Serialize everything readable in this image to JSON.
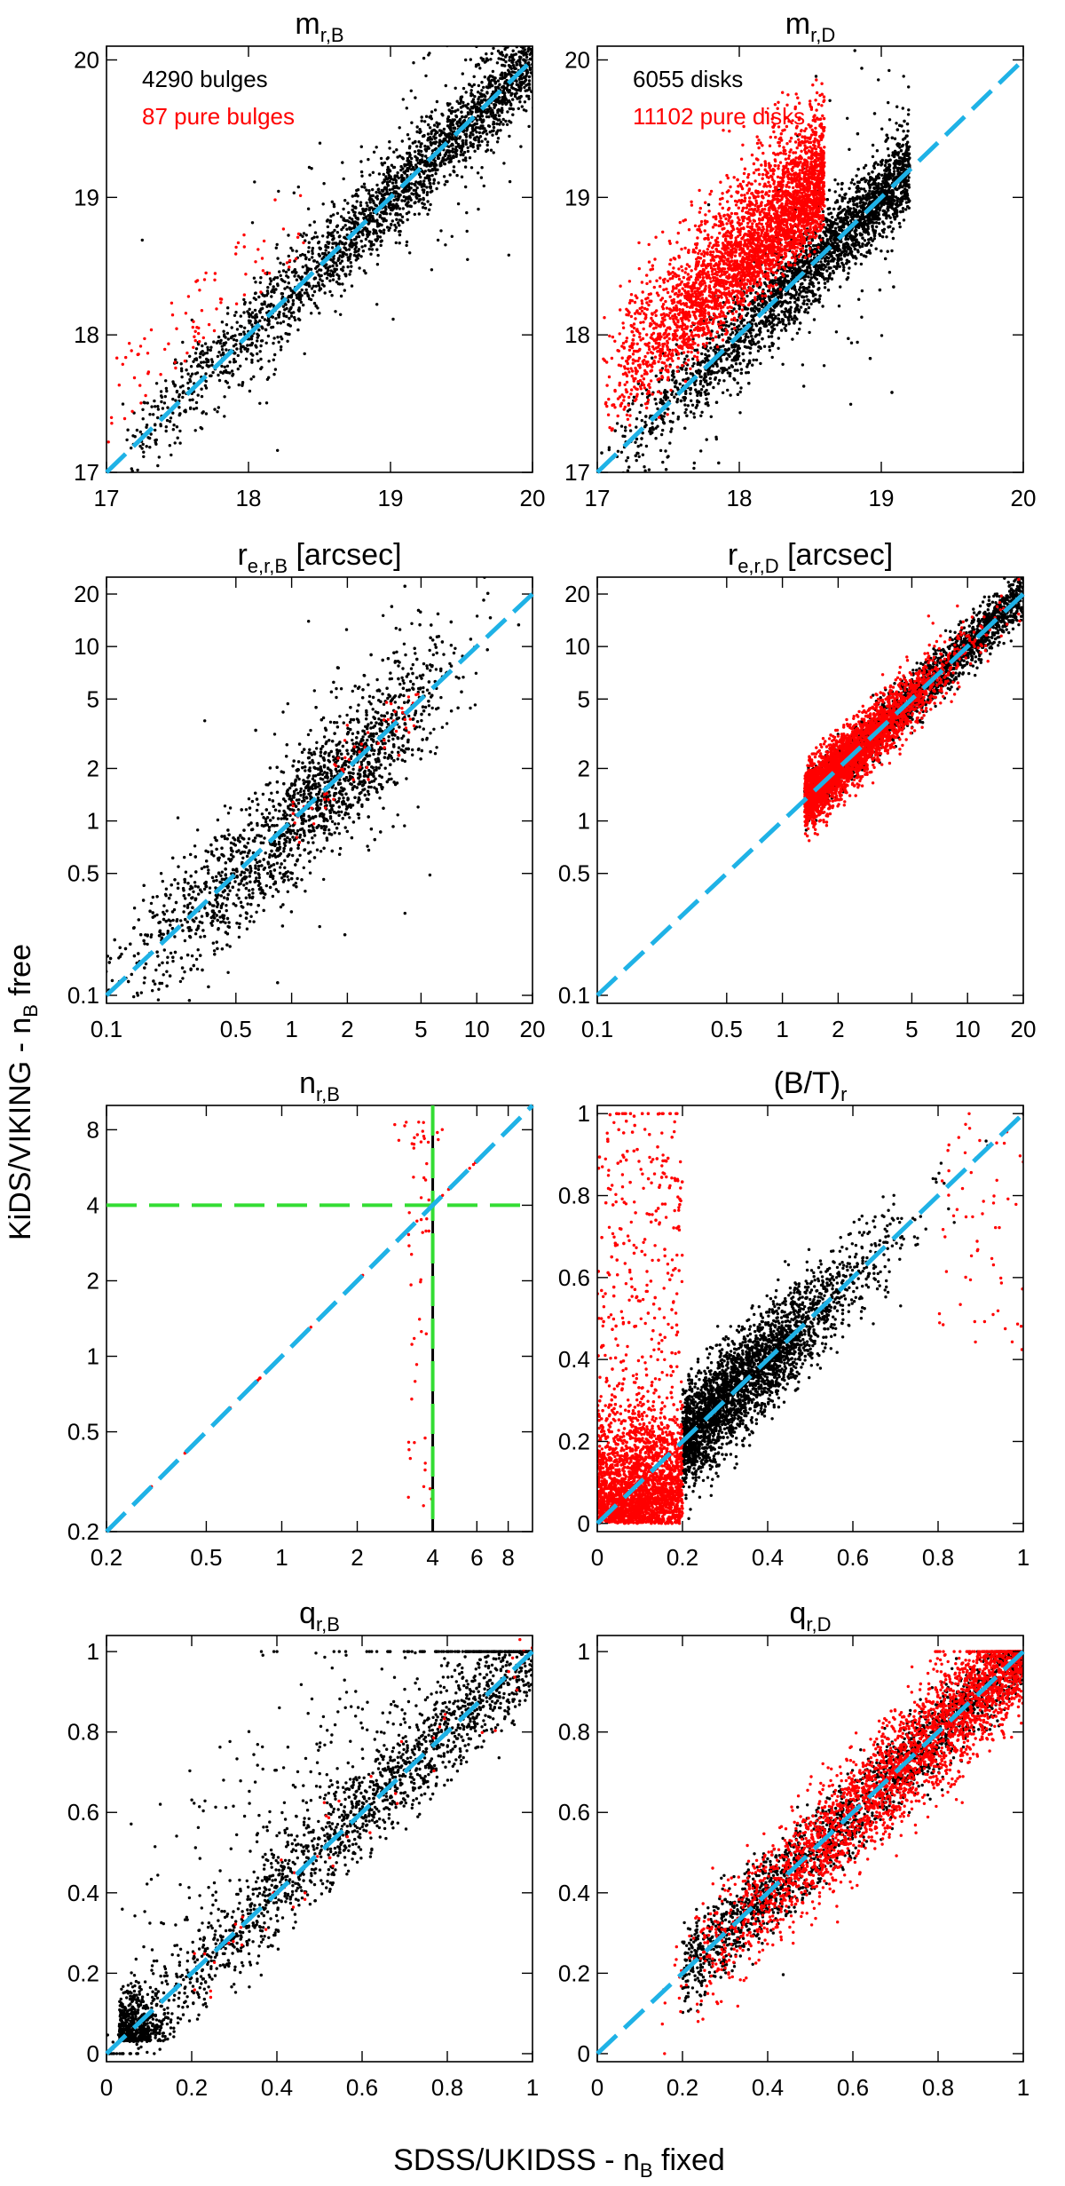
{
  "figure": {
    "ylabel": "KiDS/VIKING - n",
    "ylabel_sub": "B",
    "ylabel_suffix": " free",
    "xlabel": "SDSS/UKIDSS - n",
    "xlabel_sub": "B",
    "xlabel_suffix": " fixed"
  },
  "colors": {
    "black_points": "#000000",
    "red_points": "#ff0000",
    "one_to_one_line": "#1fb2e6",
    "reference_lines": "#33dd33"
  },
  "chart_data": [
    {
      "id": "mB",
      "type": "scatter",
      "title": "m",
      "title_sub": "r,B",
      "scale": "linear",
      "xlim": [
        17,
        20
      ],
      "ylim": [
        17,
        20.1
      ],
      "xticks": [
        "17",
        "18",
        "19",
        "20"
      ],
      "yticks": [
        "17",
        "18",
        "19",
        "20"
      ],
      "xtick_values": [
        17,
        18,
        19,
        20
      ],
      "ytick_values": [
        17,
        18,
        19,
        20
      ],
      "show_xtick_labels": true,
      "series": [
        {
          "name": "4290 bulges",
          "color": "#000000",
          "count": 4290
        },
        {
          "name": "87 pure bulges",
          "color": "#ff0000",
          "count": 87
        }
      ],
      "annotations": [
        "4290 bulges",
        "87 pure bulges"
      ],
      "reference_line": "one-to-one"
    },
    {
      "id": "mD",
      "type": "scatter",
      "title": "m",
      "title_sub": "r,D",
      "scale": "linear",
      "xlim": [
        17,
        20
      ],
      "ylim": [
        17,
        20.1
      ],
      "xticks": [
        "17",
        "18",
        "19",
        "20"
      ],
      "yticks": [
        "17",
        "18",
        "19",
        "20"
      ],
      "xtick_values": [
        17,
        18,
        19,
        20
      ],
      "ytick_values": [
        17,
        18,
        19,
        20
      ],
      "show_xtick_labels": true,
      "series": [
        {
          "name": "6055 disks",
          "color": "#000000",
          "count": 6055
        },
        {
          "name": "11102 pure disks",
          "color": "#ff0000",
          "count": 11102
        }
      ],
      "annotations": [
        "6055 disks",
        "11102 pure disks"
      ],
      "reference_line": "one-to-one"
    },
    {
      "id": "reB",
      "type": "scatter",
      "title": "r",
      "title_sub": "e,r,B",
      "title_suffix": " [arcsec]",
      "scale": "log",
      "xlim": [
        0.1,
        20
      ],
      "ylim": [
        0.09,
        25
      ],
      "xticks": [
        "0.1",
        "0.5",
        "1",
        "2",
        "5",
        "10",
        "20"
      ],
      "yticks": [
        "0.1",
        "0.5",
        "1",
        "2",
        "5",
        "10",
        "20"
      ],
      "xtick_values": [
        0.1,
        0.5,
        1,
        2,
        5,
        10,
        20
      ],
      "ytick_values": [
        0.1,
        0.5,
        1,
        2,
        5,
        10,
        20
      ],
      "show_xtick_labels": true,
      "reference_line": "one-to-one"
    },
    {
      "id": "reD",
      "type": "scatter",
      "title": "r",
      "title_sub": "e,r,D",
      "title_suffix": " [arcsec]",
      "scale": "log",
      "xlim": [
        0.1,
        20
      ],
      "ylim": [
        0.09,
        25
      ],
      "xticks": [
        "0.1",
        "0.5",
        "1",
        "2",
        "5",
        "10",
        "20"
      ],
      "yticks": [
        "0.1",
        "0.5",
        "1",
        "2",
        "5",
        "10",
        "20"
      ],
      "xtick_values": [
        0.1,
        0.5,
        1,
        2,
        5,
        10,
        20
      ],
      "ytick_values": [
        0.1,
        0.5,
        1,
        2,
        5,
        10,
        20
      ],
      "show_xtick_labels": true,
      "reference_line": "one-to-one"
    },
    {
      "id": "nB",
      "type": "scatter",
      "title": "n",
      "title_sub": "r,B",
      "scale": "log",
      "xlim": [
        0.2,
        10
      ],
      "ylim": [
        0.2,
        10
      ],
      "xticks": [
        "0.2",
        "0.5",
        "1",
        "2",
        "4",
        "6",
        "8"
      ],
      "yticks": [
        "0.2",
        "0.5",
        "1",
        "2",
        "4",
        "8"
      ],
      "xtick_values": [
        0.2,
        0.5,
        1,
        2,
        4,
        6,
        8
      ],
      "ytick_values": [
        0.2,
        0.5,
        1,
        2,
        4,
        8
      ],
      "show_xtick_labels": true,
      "reference_line": "one-to-one",
      "extra_lines": [
        "x = 4 (SDSS/UKIDSS n_B fixed)",
        "y = 4"
      ]
    },
    {
      "id": "BT",
      "type": "scatter",
      "title": "(B/T)",
      "title_sub": "r",
      "scale": "linear",
      "xlim": [
        0,
        1
      ],
      "ylim": [
        -0.02,
        1.02
      ],
      "xticks": [
        "0",
        "0.2",
        "0.4",
        "0.6",
        "0.8",
        "1"
      ],
      "yticks": [
        "0",
        "0.2",
        "0.4",
        "0.6",
        "0.8",
        "1"
      ],
      "xtick_values": [
        0,
        0.2,
        0.4,
        0.6,
        0.8,
        1
      ],
      "ytick_values": [
        0,
        0.2,
        0.4,
        0.6,
        0.8,
        1
      ],
      "show_xtick_labels": true,
      "reference_line": "one-to-one"
    },
    {
      "id": "qB",
      "type": "scatter",
      "title": "q",
      "title_sub": "r,B",
      "scale": "linear",
      "xlim": [
        0,
        1
      ],
      "ylim": [
        -0.02,
        1.04
      ],
      "xticks": [
        "0",
        "0.2",
        "0.4",
        "0.6",
        "0.8",
        "1"
      ],
      "yticks": [
        "0",
        "0.2",
        "0.4",
        "0.6",
        "0.8",
        "1"
      ],
      "xtick_values": [
        0,
        0.2,
        0.4,
        0.6,
        0.8,
        1
      ],
      "ytick_values": [
        0,
        0.2,
        0.4,
        0.6,
        0.8,
        1
      ],
      "show_xtick_labels": true,
      "reference_line": "one-to-one"
    },
    {
      "id": "qD",
      "type": "scatter",
      "title": "q",
      "title_sub": "r,D",
      "scale": "linear",
      "xlim": [
        0,
        1
      ],
      "ylim": [
        -0.02,
        1.04
      ],
      "xticks": [
        "0",
        "0.2",
        "0.4",
        "0.6",
        "0.8",
        "1"
      ],
      "yticks": [
        "0",
        "0.2",
        "0.4",
        "0.6",
        "0.8",
        "1"
      ],
      "xtick_values": [
        0,
        0.2,
        0.4,
        0.6,
        0.8,
        1
      ],
      "ytick_values": [
        0,
        0.2,
        0.4,
        0.6,
        0.8,
        1
      ],
      "show_xtick_labels": true,
      "reference_line": "one-to-one"
    }
  ]
}
